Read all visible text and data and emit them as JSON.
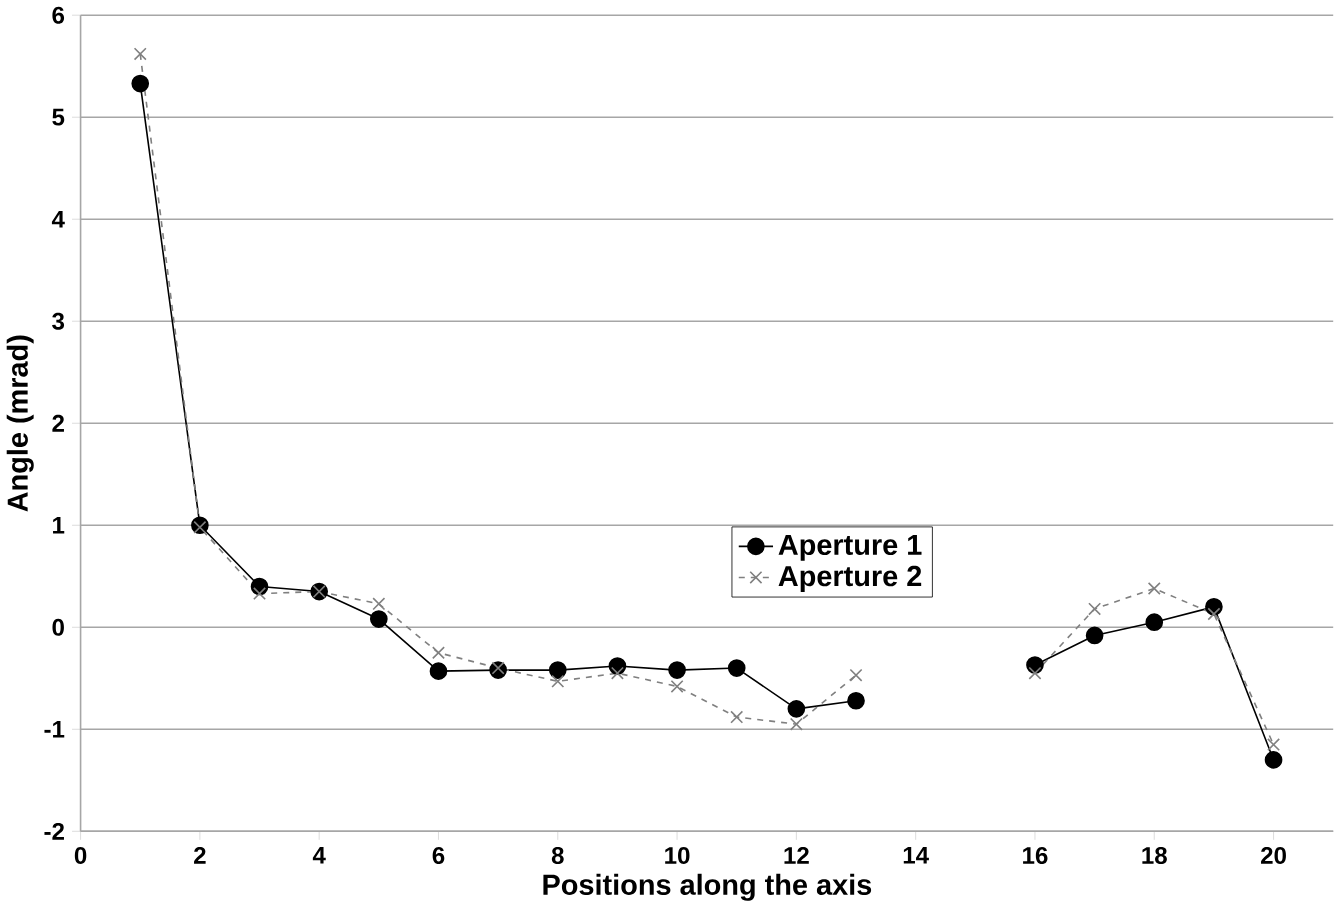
{
  "chart_data": {
    "type": "line",
    "xlabel": "Positions along the axis",
    "ylabel": "Angle (mrad)",
    "x": [
      1,
      2,
      3,
      4,
      5,
      6,
      7,
      8,
      9,
      10,
      11,
      12,
      13,
      14,
      15,
      16,
      17,
      18,
      19,
      20
    ],
    "series": [
      {
        "name": "Aperture 1",
        "color": "#000000",
        "marker": "circle",
        "line_style": "solid",
        "values": [
          5.33,
          1.0,
          0.4,
          0.35,
          0.08,
          -0.43,
          -0.42,
          -0.42,
          -0.38,
          -0.42,
          -0.4,
          -0.8,
          -0.72,
          null,
          null,
          -0.37,
          -0.08,
          0.05,
          0.2,
          -1.3
        ]
      },
      {
        "name": "Aperture 2",
        "color": "#808080",
        "marker": "cross",
        "line_style": "dashed",
        "values": [
          5.62,
          0.98,
          0.33,
          0.35,
          0.23,
          -0.25,
          -0.4,
          -0.53,
          -0.45,
          -0.58,
          -0.88,
          -0.95,
          -0.47,
          null,
          null,
          -0.45,
          0.18,
          0.38,
          0.13,
          -1.15
        ]
      }
    ],
    "xlim": [
      0,
      21
    ],
    "xticks": [
      0,
      2,
      4,
      6,
      8,
      10,
      12,
      14,
      16,
      18,
      20
    ],
    "ylim": [
      -2,
      6
    ],
    "yticks": [
      -2,
      -1,
      0,
      1,
      2,
      3,
      4,
      5,
      6
    ],
    "grid": "y",
    "legend": "center"
  }
}
